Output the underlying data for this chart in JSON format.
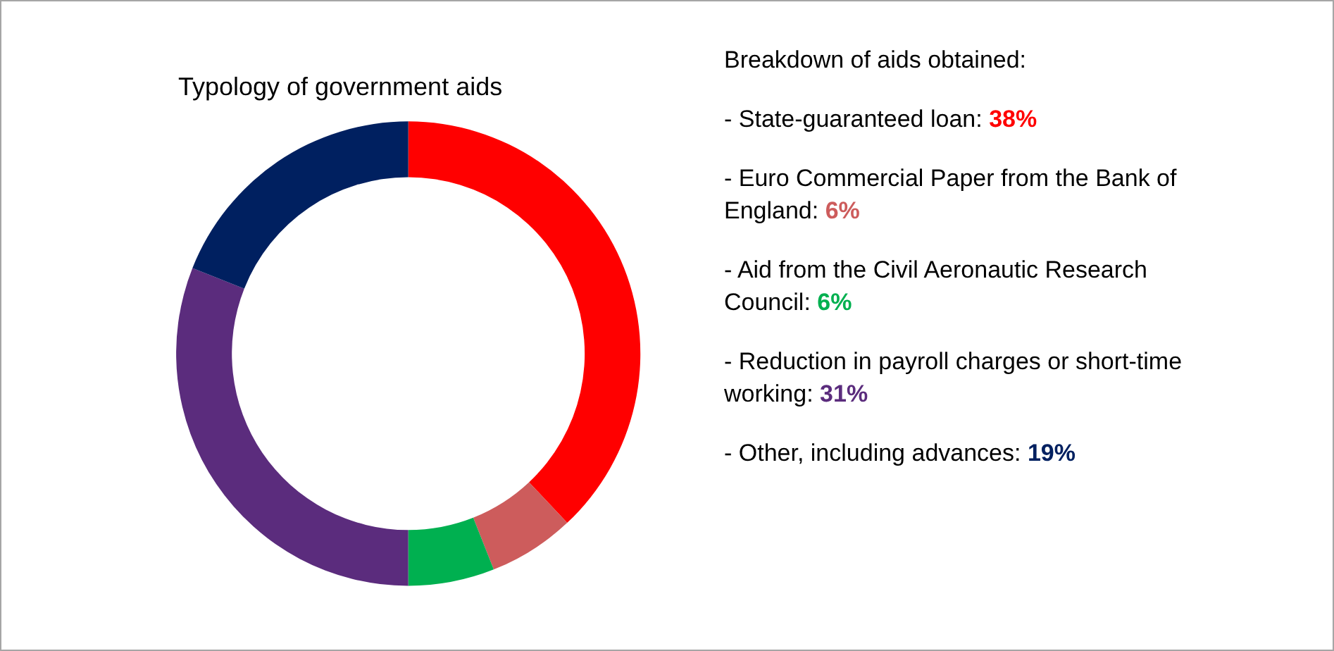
{
  "chart_data": {
    "type": "donut",
    "title": "Typology of government aids",
    "categories": [
      null,
      null,
      null,
      null,
      null
    ],
    "values": [
      38,
      6,
      6,
      31,
      19
    ],
    "colors": [
      "#ff0000",
      "#cd5c5c",
      "#00b050",
      "#5b2c7d",
      "#002060"
    ],
    "annotations": [
      "Breakdown of aids obtained:",
      "- State-guaranteed loan: 38%",
      "- Euro Commercial Paper from the Bank of England: 6%",
      "- Aid from the Civil Aeronautic Research Council: 6%",
      "- Reduction in payroll charges or short-time working: 31%",
      "- Other, including advances: 19%"
    ]
  }
}
